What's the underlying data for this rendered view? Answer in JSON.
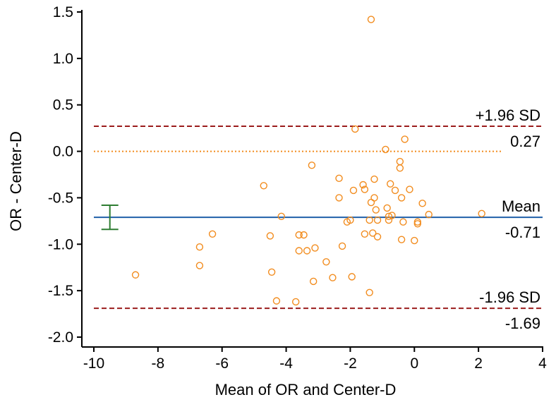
{
  "chart_data": {
    "type": "scatter",
    "title": "",
    "xlabel": "Mean of OR and Center-D",
    "ylabel": "OR - Center-D",
    "xlim": [
      -10,
      4
    ],
    "ylim": [
      -2.0,
      1.5
    ],
    "xticks": [
      -10,
      -8,
      -6,
      -4,
      -2,
      0,
      2,
      4
    ],
    "yticks": [
      1.5,
      1.0,
      0.5,
      0.0,
      -0.5,
      -1.0,
      -1.5,
      -2.0
    ],
    "xtick_labels": [
      "-10",
      "-8",
      "-6",
      "-4",
      "-2",
      "0",
      "2",
      "4"
    ],
    "ytick_labels": [
      "1.5",
      "1.0",
      "0.5",
      "0.0",
      "-0.5",
      "-1.0",
      "-1.5",
      "-2.0"
    ],
    "grid": false,
    "points": [
      {
        "x": -8.7,
        "y": -1.33
      },
      {
        "x": -6.7,
        "y": -1.03
      },
      {
        "x": -6.7,
        "y": -1.23
      },
      {
        "x": -6.3,
        "y": -0.89
      },
      {
        "x": -4.7,
        "y": -0.37
      },
      {
        "x": -4.5,
        "y": -0.91
      },
      {
        "x": -4.45,
        "y": -1.3
      },
      {
        "x": -4.3,
        "y": -1.61
      },
      {
        "x": -4.15,
        "y": -0.7
      },
      {
        "x": -3.7,
        "y": -1.62
      },
      {
        "x": -3.6,
        "y": -0.9
      },
      {
        "x": -3.6,
        "y": -1.07
      },
      {
        "x": -3.45,
        "y": -0.9
      },
      {
        "x": -3.35,
        "y": -1.07
      },
      {
        "x": -3.2,
        "y": -0.15
      },
      {
        "x": -3.15,
        "y": -1.4
      },
      {
        "x": -3.1,
        "y": -1.04
      },
      {
        "x": -2.75,
        "y": -1.19
      },
      {
        "x": -2.55,
        "y": -1.36
      },
      {
        "x": -2.35,
        "y": -0.29
      },
      {
        "x": -2.35,
        "y": -0.5
      },
      {
        "x": -2.25,
        "y": -1.02
      },
      {
        "x": -2.1,
        "y": -0.76
      },
      {
        "x": -2.0,
        "y": -0.74
      },
      {
        "x": -1.95,
        "y": -1.35
      },
      {
        "x": -1.9,
        "y": -0.42
      },
      {
        "x": -1.85,
        "y": 0.24
      },
      {
        "x": -1.6,
        "y": -0.36
      },
      {
        "x": -1.55,
        "y": -0.41
      },
      {
        "x": -1.55,
        "y": -0.89
      },
      {
        "x": -1.4,
        "y": -0.74
      },
      {
        "x": -1.4,
        "y": -1.52
      },
      {
        "x": -1.35,
        "y": -0.55
      },
      {
        "x": -1.35,
        "y": 1.42
      },
      {
        "x": -1.3,
        "y": -0.88
      },
      {
        "x": -1.25,
        "y": -0.3
      },
      {
        "x": -1.25,
        "y": -0.5
      },
      {
        "x": -1.2,
        "y": -0.63
      },
      {
        "x": -1.15,
        "y": -0.92
      },
      {
        "x": -1.15,
        "y": -0.74
      },
      {
        "x": -0.9,
        "y": 0.02
      },
      {
        "x": -0.85,
        "y": -0.61
      },
      {
        "x": -0.8,
        "y": -0.7
      },
      {
        "x": -0.8,
        "y": -0.74
      },
      {
        "x": -0.75,
        "y": -0.35
      },
      {
        "x": -0.7,
        "y": -0.69
      },
      {
        "x": -0.6,
        "y": -0.42
      },
      {
        "x": -0.45,
        "y": -0.11
      },
      {
        "x": -0.45,
        "y": -0.18
      },
      {
        "x": -0.4,
        "y": -0.5
      },
      {
        "x": -0.4,
        "y": -0.95
      },
      {
        "x": -0.35,
        "y": -0.76
      },
      {
        "x": -0.3,
        "y": 0.13
      },
      {
        "x": -0.15,
        "y": -0.41
      },
      {
        "x": 0.0,
        "y": -0.96
      },
      {
        "x": 0.1,
        "y": -0.76
      },
      {
        "x": 0.1,
        "y": -0.78
      },
      {
        "x": 0.25,
        "y": -0.56
      },
      {
        "x": 0.45,
        "y": -0.68
      },
      {
        "x": 2.1,
        "y": -0.67
      }
    ],
    "reference_lines": [
      {
        "name": "+1.96 SD",
        "label": "+1.96 SD",
        "value_label": "0.27",
        "y": 0.27,
        "style": "dashed",
        "color": "#9b1c1c"
      },
      {
        "name": "zero",
        "label": "",
        "value_label": "",
        "y": 0.0,
        "style": "dotted",
        "color": "#f28c1e"
      },
      {
        "name": "Mean",
        "label": "Mean",
        "value_label": "-0.71",
        "y": -0.71,
        "style": "solid",
        "color": "#1f5fa8"
      },
      {
        "name": "-1.96 SD",
        "label": "-1.96 SD",
        "value_label": "-1.69",
        "y": -1.69,
        "style": "dashed",
        "color": "#9b1c1c"
      }
    ],
    "mean_ci": {
      "x": -9.5,
      "y_low": -0.84,
      "y_high": -0.58,
      "color": "#2e7d32"
    },
    "point_color": "#f28c1e"
  }
}
